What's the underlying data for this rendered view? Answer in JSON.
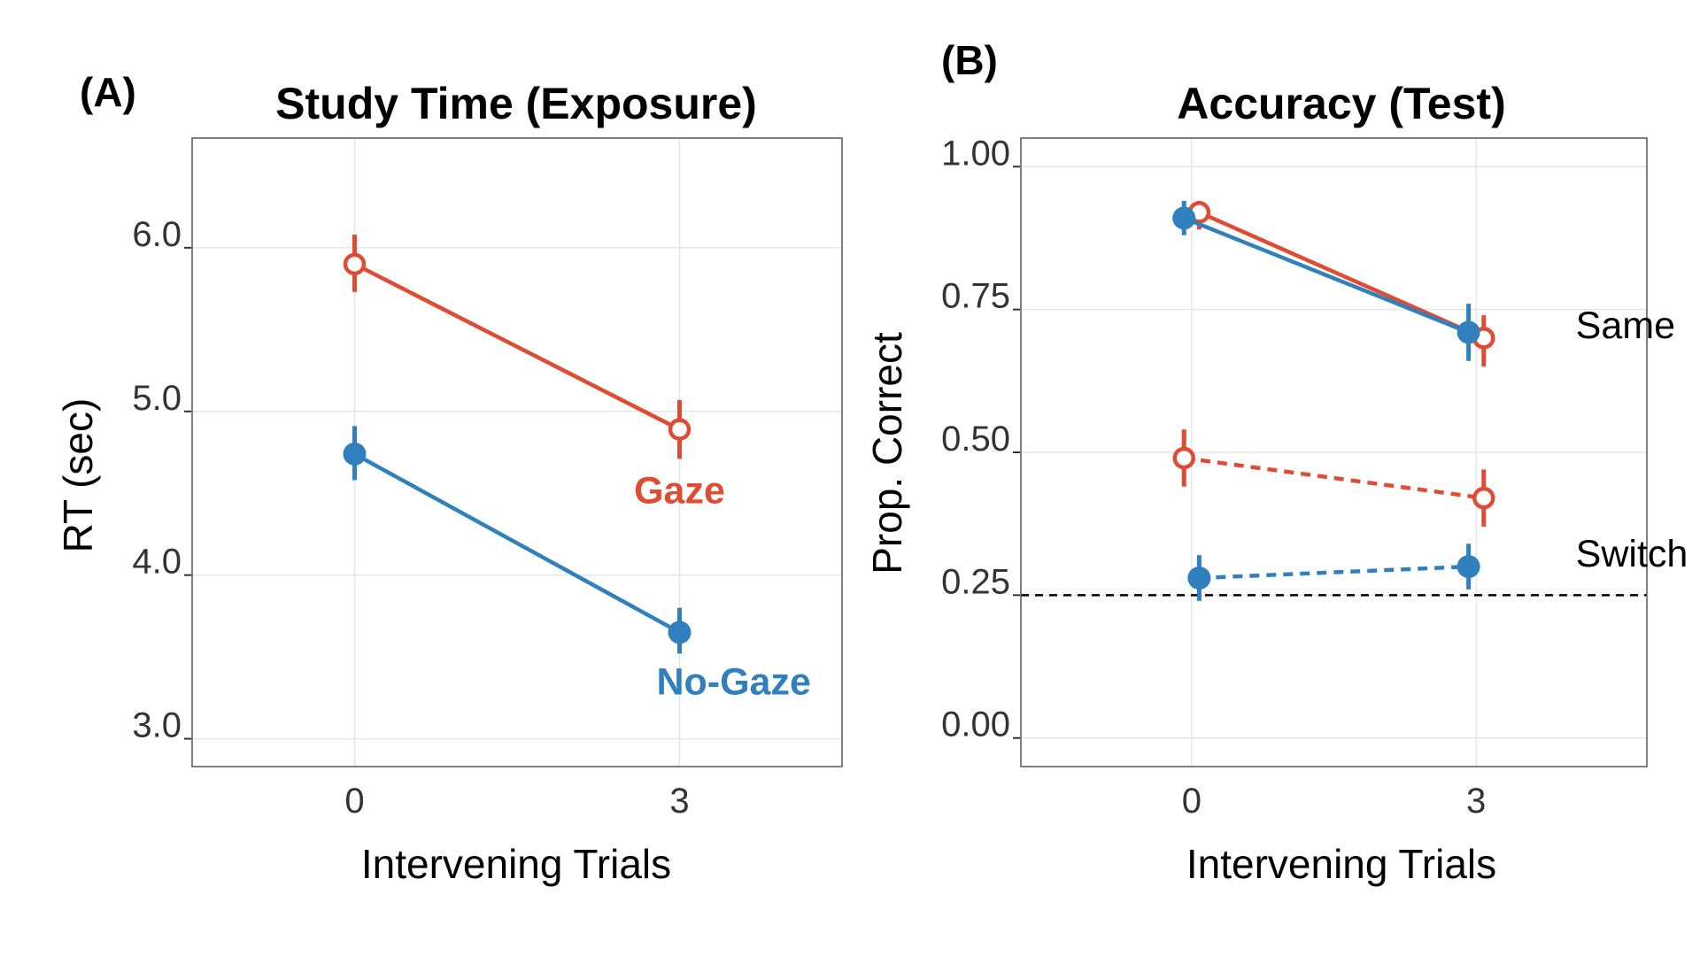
{
  "colors": {
    "red": "#E04B33",
    "blue": "#2F80BC",
    "grid": "#E6E6E6",
    "frame": "#555555"
  },
  "chart_data": [
    {
      "type": "line",
      "panel_label": "(A)",
      "title": "Study Time (Exposure)",
      "xlabel": "Intervening Trials",
      "ylabel": "RT (sec)",
      "x_ticks": [
        "0",
        "3"
      ],
      "y_ticks": [
        "3.0",
        "4.0",
        "5.0",
        "6.0"
      ],
      "y_tick_values": [
        3,
        4,
        5,
        6
      ],
      "xlim": [
        -1.5,
        4.5
      ],
      "ylim": [
        2.83,
        6.67
      ],
      "grid": true,
      "series": [
        {
          "name": "Gaze",
          "color": "red",
          "marker": "open",
          "linestyle": "solid",
          "label_at": [
            3,
            4.44
          ],
          "points": [
            {
              "x": 0,
              "y": 5.9,
              "lo": 5.73,
              "hi": 6.08
            },
            {
              "x": 3,
              "y": 4.89,
              "lo": 4.71,
              "hi": 5.07
            }
          ]
        },
        {
          "name": "No-Gaze",
          "color": "blue",
          "marker": "filled",
          "linestyle": "solid",
          "label_at": [
            3.5,
            3.27
          ],
          "points": [
            {
              "x": 0,
              "y": 4.74,
              "lo": 4.58,
              "hi": 4.91
            },
            {
              "x": 3,
              "y": 3.65,
              "lo": 3.52,
              "hi": 3.8
            }
          ]
        }
      ]
    },
    {
      "type": "line",
      "panel_label": "(B)",
      "title": "Accuracy (Test)",
      "xlabel": "Intervening Trials",
      "ylabel": "Prop. Correct",
      "x_ticks": [
        "0",
        "3"
      ],
      "y_ticks": [
        "0.00",
        "0.25",
        "0.50",
        "0.75",
        "1.00"
      ],
      "y_tick_values": [
        0,
        0.25,
        0.5,
        0.75,
        1.0
      ],
      "xlim": [
        -1.8,
        4.8
      ],
      "ylim": [
        -0.05,
        1.05
      ],
      "grid": true,
      "reference_line": {
        "y": 0.25,
        "style": "dashed"
      },
      "annotations": [
        {
          "text": "Same",
          "x": 4.05,
          "y": 0.7
        },
        {
          "text": "Switch",
          "x": 4.05,
          "y": 0.3
        }
      ],
      "series": [
        {
          "condition": "Same",
          "color": "red",
          "marker": "open",
          "linestyle": "solid",
          "points": [
            {
              "x": 0.08,
              "y": 0.92,
              "lo": 0.89,
              "hi": 0.94
            },
            {
              "x": 3.08,
              "y": 0.7,
              "lo": 0.65,
              "hi": 0.74
            }
          ]
        },
        {
          "condition": "Same",
          "color": "blue",
          "marker": "filled",
          "linestyle": "solid",
          "points": [
            {
              "x": -0.08,
              "y": 0.91,
              "lo": 0.88,
              "hi": 0.94
            },
            {
              "x": 2.92,
              "y": 0.71,
              "lo": 0.66,
              "hi": 0.76
            }
          ]
        },
        {
          "condition": "Switch",
          "color": "red",
          "marker": "open",
          "linestyle": "dashed",
          "points": [
            {
              "x": -0.08,
              "y": 0.49,
              "lo": 0.44,
              "hi": 0.54
            },
            {
              "x": 3.08,
              "y": 0.42,
              "lo": 0.37,
              "hi": 0.47
            }
          ]
        },
        {
          "condition": "Switch",
          "color": "blue",
          "marker": "filled",
          "linestyle": "dashed",
          "points": [
            {
              "x": 0.08,
              "y": 0.28,
              "lo": 0.24,
              "hi": 0.32
            },
            {
              "x": 2.92,
              "y": 0.3,
              "lo": 0.26,
              "hi": 0.34
            }
          ]
        }
      ]
    }
  ]
}
